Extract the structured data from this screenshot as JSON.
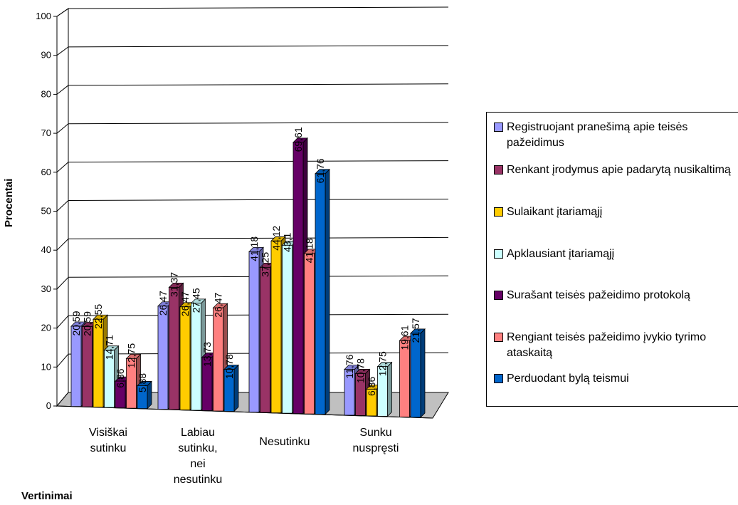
{
  "chart_data": {
    "type": "bar",
    "ylabel": "Procentai",
    "xlabel": "Vertinimai",
    "ylim": [
      0,
      100
    ],
    "yticks": [
      "0",
      "10",
      "20",
      "30",
      "40",
      "50",
      "60",
      "70",
      "80",
      "90",
      "100"
    ],
    "categories": [
      "Visiškai sutinku",
      "Labiau sutinku, nei nesutinku",
      "Nesutinku",
      "Sunku nuspręsti"
    ],
    "series": [
      {
        "name": "Registruojant pranešimą apie teisės pažeidimus",
        "color": "#9999ff",
        "values": [
          20.59,
          26.47,
          41.18,
          11.76
        ],
        "labels": [
          "20,59",
          "26,47",
          "41,18",
          "11,76"
        ]
      },
      {
        "name": "Renkant įrodymus apie padarytą nusikaltimą",
        "color": "#993366",
        "values": [
          20.59,
          31.37,
          37.25,
          10.78
        ],
        "labels": [
          "20,59",
          "31,37",
          "37,25",
          "10,78"
        ]
      },
      {
        "name": "Sulaikant įtariamąjį",
        "color": "#ffcc00",
        "values": [
          22.55,
          26.47,
          44.12,
          6.86
        ],
        "labels": [
          "22,55",
          "26,47",
          "44,12",
          "6,86"
        ]
      },
      {
        "name": "Apklausiant įtariamąjį",
        "color": "#ccffff",
        "values": [
          14.71,
          27.45,
          43.1,
          12.75
        ],
        "labels": [
          "14,71",
          "27,45",
          "43,1",
          "12,75"
        ]
      },
      {
        "name": "Surašant teisės pažeidimo protokolą",
        "color": "#660066",
        "values": [
          6.86,
          13.73,
          69.61,
          0
        ],
        "labels": [
          "6,86",
          "13,73",
          "69,61",
          ""
        ]
      },
      {
        "name": "Rengiant teisės pažeidimo įvykio tyrimo ataskaitą",
        "color": "#ff8080",
        "values": [
          12.75,
          26.47,
          41.18,
          19.61
        ],
        "labels": [
          "12,75",
          "26,47",
          "41,18",
          "19,61"
        ]
      },
      {
        "name": "Perduodant bylą teismui",
        "color": "#0066cc",
        "values": [
          5.88,
          10.78,
          61.76,
          21.57
        ],
        "labels": [
          "5,88",
          "10,78",
          "61,76",
          "21,57"
        ]
      }
    ]
  }
}
